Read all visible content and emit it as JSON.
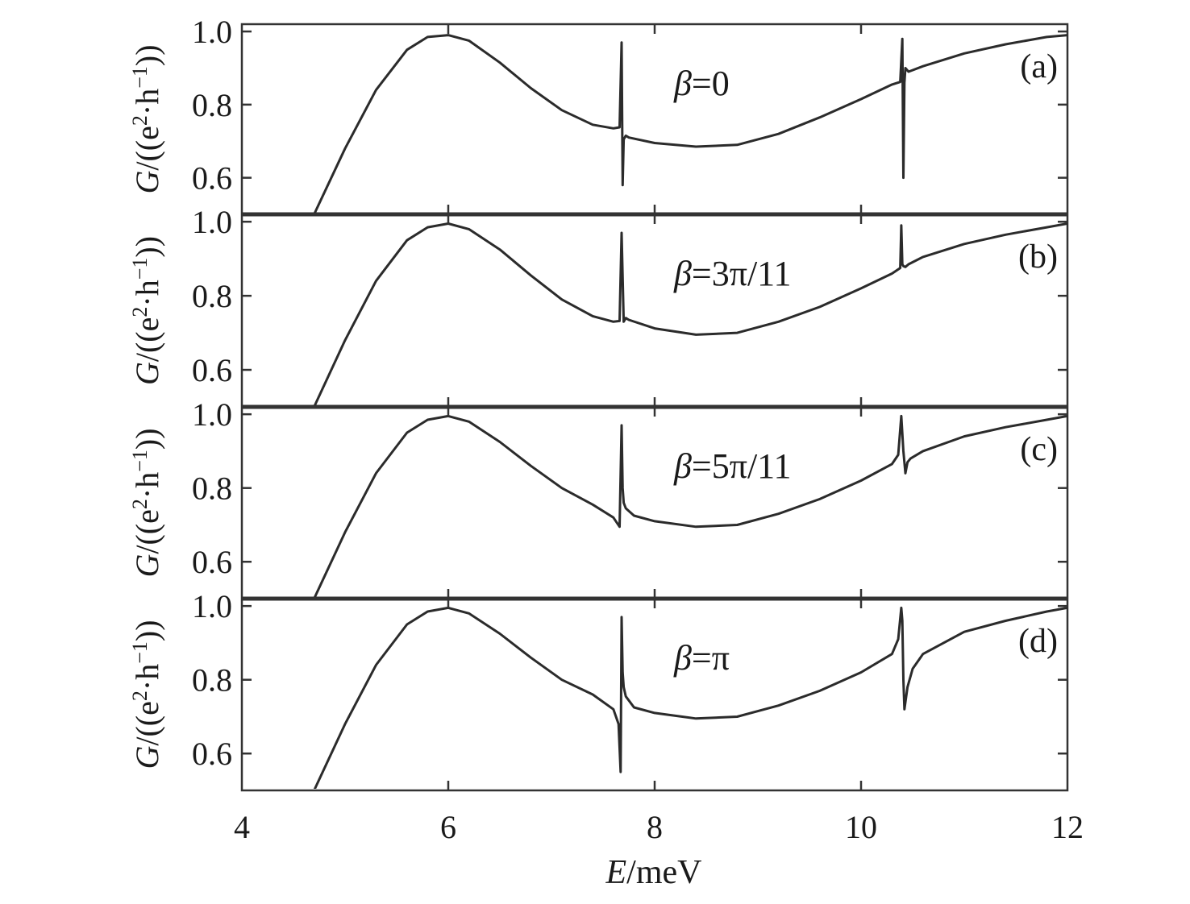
{
  "chart_data": {
    "type": "line",
    "x_range": [
      4,
      12
    ],
    "x_ticks": [
      4,
      6,
      8,
      10,
      12
    ],
    "x_tick_labels": [
      "4",
      "6",
      "8",
      "10",
      "12"
    ],
    "y_range": [
      0.5,
      1.02
    ],
    "y_ticks": [
      0.6,
      0.8,
      1.0
    ],
    "y_tick_labels": [
      "0.6",
      "0.8",
      "1.0"
    ],
    "xlabel_italic": "E",
    "xlabel_rest": "/meV",
    "ylabel_italic": "G",
    "ylabel_open": "/((e",
    "ylabel_sup1": "2",
    "ylabel_mid": "·h",
    "ylabel_sup2": "−1",
    "ylabel_close": "))",
    "panels": [
      {
        "panel_label": "(a)",
        "beta_label": "=0",
        "x": [
          4.7,
          5.0,
          5.3,
          5.6,
          5.8,
          6.0,
          6.2,
          6.5,
          6.8,
          7.1,
          7.4,
          7.6,
          7.66,
          7.68,
          7.69,
          7.7,
          7.72,
          7.75,
          8.0,
          8.4,
          8.8,
          9.2,
          9.6,
          10.0,
          10.3,
          10.38,
          10.4,
          10.41,
          10.42,
          10.43,
          10.46,
          10.6,
          11.0,
          11.4,
          11.8,
          12.0
        ],
        "y": [
          0.5,
          0.68,
          0.84,
          0.95,
          0.985,
          0.99,
          0.975,
          0.915,
          0.845,
          0.785,
          0.745,
          0.735,
          0.738,
          0.97,
          0.58,
          0.705,
          0.715,
          0.71,
          0.695,
          0.685,
          0.69,
          0.72,
          0.765,
          0.815,
          0.855,
          0.862,
          0.98,
          0.6,
          0.86,
          0.9,
          0.89,
          0.905,
          0.94,
          0.965,
          0.985,
          0.99
        ]
      },
      {
        "panel_label": "(b)",
        "beta_label": "=3π/11",
        "x": [
          4.7,
          5.0,
          5.3,
          5.6,
          5.8,
          6.0,
          6.2,
          6.5,
          6.8,
          7.1,
          7.4,
          7.6,
          7.66,
          7.68,
          7.7,
          7.72,
          7.75,
          8.0,
          8.4,
          8.8,
          9.2,
          9.6,
          10.0,
          10.3,
          10.38,
          10.39,
          10.4,
          10.41,
          10.43,
          10.46,
          10.6,
          11.0,
          11.4,
          11.8,
          12.0
        ],
        "y": [
          0.5,
          0.68,
          0.84,
          0.95,
          0.985,
          0.995,
          0.98,
          0.925,
          0.855,
          0.79,
          0.745,
          0.73,
          0.732,
          0.97,
          0.73,
          0.74,
          0.735,
          0.712,
          0.695,
          0.7,
          0.73,
          0.77,
          0.82,
          0.86,
          0.875,
          0.99,
          0.885,
          0.88,
          0.878,
          0.885,
          0.905,
          0.94,
          0.965,
          0.985,
          0.995
        ]
      },
      {
        "panel_label": "(c)",
        "beta_label": "=5π/11",
        "x": [
          4.7,
          5.0,
          5.3,
          5.6,
          5.8,
          6.0,
          6.2,
          6.5,
          6.8,
          7.1,
          7.4,
          7.6,
          7.66,
          7.68,
          7.69,
          7.7,
          7.72,
          7.8,
          8.0,
          8.4,
          8.8,
          9.2,
          9.6,
          10.0,
          10.3,
          10.36,
          10.39,
          10.41,
          10.43,
          10.45,
          10.48,
          10.6,
          11.0,
          11.4,
          11.8,
          12.0
        ],
        "y": [
          0.5,
          0.68,
          0.84,
          0.95,
          0.985,
          0.995,
          0.98,
          0.925,
          0.86,
          0.8,
          0.755,
          0.72,
          0.695,
          0.97,
          0.8,
          0.76,
          0.745,
          0.725,
          0.71,
          0.695,
          0.7,
          0.73,
          0.77,
          0.82,
          0.865,
          0.89,
          0.995,
          0.9,
          0.84,
          0.87,
          0.88,
          0.9,
          0.94,
          0.965,
          0.985,
          0.995
        ]
      },
      {
        "panel_label": "(d)",
        "beta_label": "=π",
        "x": [
          4.7,
          5.0,
          5.3,
          5.6,
          5.8,
          6.0,
          6.2,
          6.5,
          6.8,
          7.1,
          7.4,
          7.6,
          7.65,
          7.67,
          7.68,
          7.69,
          7.7,
          7.72,
          7.8,
          8.0,
          8.4,
          8.8,
          9.2,
          9.6,
          10.0,
          10.3,
          10.36,
          10.39,
          10.4,
          10.41,
          10.42,
          10.45,
          10.5,
          10.6,
          11.0,
          11.4,
          11.8,
          12.0
        ],
        "y": [
          0.5,
          0.68,
          0.84,
          0.95,
          0.985,
          0.995,
          0.98,
          0.925,
          0.86,
          0.8,
          0.76,
          0.72,
          0.68,
          0.55,
          0.97,
          0.82,
          0.78,
          0.755,
          0.725,
          0.71,
          0.695,
          0.7,
          0.73,
          0.77,
          0.82,
          0.87,
          0.91,
          0.995,
          0.96,
          0.8,
          0.72,
          0.78,
          0.83,
          0.87,
          0.93,
          0.96,
          0.985,
          0.995
        ]
      }
    ]
  }
}
